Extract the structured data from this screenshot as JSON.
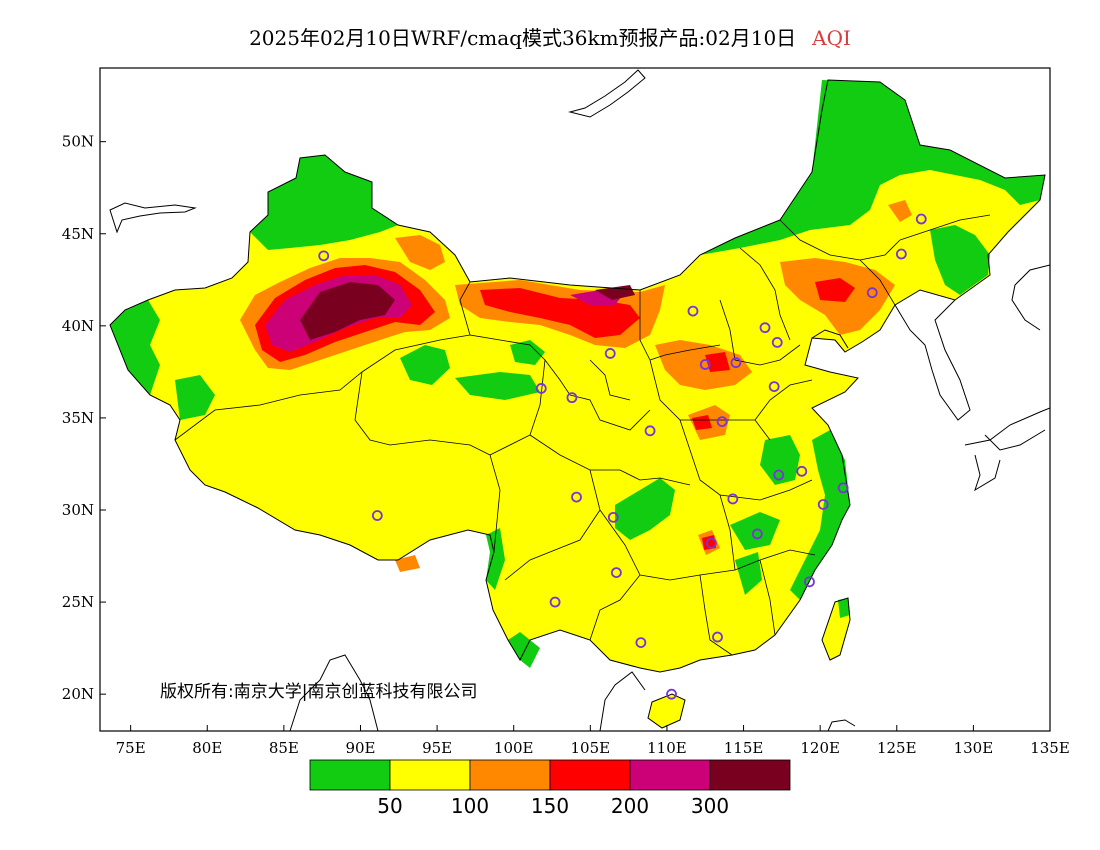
{
  "title": {
    "main": "2025年02月10日WRF/cmaq模式36km预报产品:02月10日",
    "variable": "AQI"
  },
  "copyright": "版权所有:南京大学|南京创蓝科技有限公司",
  "map_extent": {
    "lon_min": 73,
    "lon_max": 135,
    "lat_min": 18,
    "lat_max": 54
  },
  "axes": {
    "lat_ticks": [
      {
        "value": 50,
        "label": "50N"
      },
      {
        "value": 45,
        "label": "45N"
      },
      {
        "value": 40,
        "label": "40N"
      },
      {
        "value": 35,
        "label": "35N"
      },
      {
        "value": 30,
        "label": "30N"
      },
      {
        "value": 25,
        "label": "25N"
      },
      {
        "value": 20,
        "label": "20N"
      }
    ],
    "lon_ticks": [
      {
        "value": 75,
        "label": "75E"
      },
      {
        "value": 80,
        "label": "80E"
      },
      {
        "value": 85,
        "label": "85E"
      },
      {
        "value": 90,
        "label": "90E"
      },
      {
        "value": 95,
        "label": "95E"
      },
      {
        "value": 100,
        "label": "100E"
      },
      {
        "value": 105,
        "label": "105E"
      },
      {
        "value": 110,
        "label": "110E"
      },
      {
        "value": 115,
        "label": "115E"
      },
      {
        "value": 120,
        "label": "120E"
      },
      {
        "value": 125,
        "label": "125E"
      },
      {
        "value": 130,
        "label": "130E"
      },
      {
        "value": 135,
        "label": "135E"
      }
    ]
  },
  "legend": {
    "colors": [
      "#11cc11",
      "#ffff00",
      "#ff8800",
      "#ff0000",
      "#cc0077",
      "#7a0020"
    ],
    "breaks": [
      "50",
      "100",
      "150",
      "200",
      "300"
    ]
  },
  "colors": {
    "land_default": "#ffff00",
    "city_marker": "#7733dd",
    "coastline": "#000000"
  },
  "cities": [
    {
      "lon": 87.6,
      "lat": 43.8
    },
    {
      "lon": 91.1,
      "lat": 29.7
    },
    {
      "lon": 101.8,
      "lat": 36.6
    },
    {
      "lon": 103.8,
      "lat": 36.1
    },
    {
      "lon": 106.3,
      "lat": 38.5
    },
    {
      "lon": 111.7,
      "lat": 40.8
    },
    {
      "lon": 116.4,
      "lat": 39.9
    },
    {
      "lon": 117.2,
      "lat": 39.1
    },
    {
      "lon": 114.5,
      "lat": 38.0
    },
    {
      "lon": 112.5,
      "lat": 37.9
    },
    {
      "lon": 117.0,
      "lat": 36.7
    },
    {
      "lon": 113.6,
      "lat": 34.8
    },
    {
      "lon": 108.9,
      "lat": 34.3
    },
    {
      "lon": 104.1,
      "lat": 30.7
    },
    {
      "lon": 106.5,
      "lat": 29.6
    },
    {
      "lon": 114.3,
      "lat": 30.6
    },
    {
      "lon": 117.3,
      "lat": 31.9
    },
    {
      "lon": 118.8,
      "lat": 32.1
    },
    {
      "lon": 120.2,
      "lat": 30.3
    },
    {
      "lon": 121.5,
      "lat": 31.2
    },
    {
      "lon": 112.9,
      "lat": 28.2
    },
    {
      "lon": 115.9,
      "lat": 28.7
    },
    {
      "lon": 119.3,
      "lat": 26.1
    },
    {
      "lon": 106.7,
      "lat": 26.6
    },
    {
      "lon": 102.7,
      "lat": 25.0
    },
    {
      "lon": 108.3,
      "lat": 22.8
    },
    {
      "lon": 113.3,
      "lat": 23.1
    },
    {
      "lon": 110.3,
      "lat": 20.0
    },
    {
      "lon": 123.4,
      "lat": 41.8
    },
    {
      "lon": 125.3,
      "lat": 43.9
    },
    {
      "lon": 126.6,
      "lat": 45.8
    }
  ]
}
